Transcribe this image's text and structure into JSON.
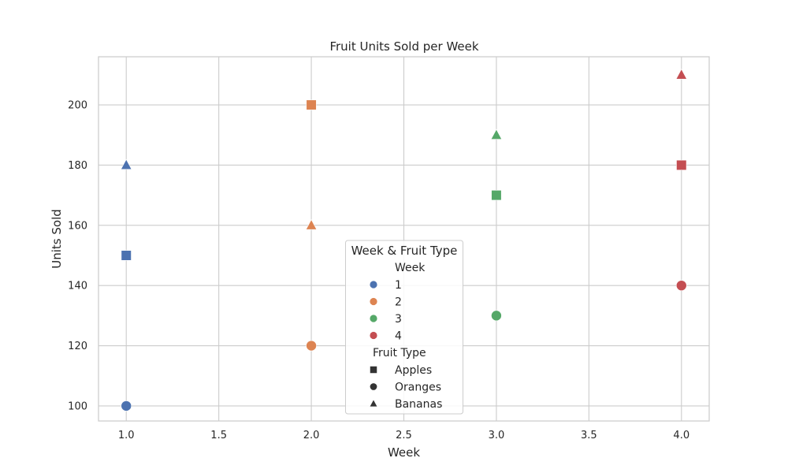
{
  "chart_data": {
    "type": "scatter",
    "title": "Fruit Units Sold per Week",
    "xlabel": "Week",
    "ylabel": "Units Sold",
    "xlim": [
      0.85,
      4.15
    ],
    "ylim": [
      95,
      216
    ],
    "xticks": [
      "1.0",
      "1.5",
      "2.0",
      "2.5",
      "3.0",
      "3.5",
      "4.0"
    ],
    "yticks": [
      "100",
      "120",
      "140",
      "160",
      "180",
      "200"
    ],
    "grid": true,
    "hue_colors": {
      "1": "#4c72b0",
      "2": "#dd8452",
      "3": "#55a868",
      "4": "#c44e52"
    },
    "marker_shapes": {
      "Apples": "square",
      "Oranges": "circle",
      "Bananas": "triangle"
    },
    "points": [
      {
        "x": 1,
        "y": 150,
        "week": "1",
        "fruit": "Apples"
      },
      {
        "x": 1,
        "y": 100,
        "week": "1",
        "fruit": "Oranges"
      },
      {
        "x": 1,
        "y": 180,
        "week": "1",
        "fruit": "Bananas"
      },
      {
        "x": 2,
        "y": 200,
        "week": "2",
        "fruit": "Apples"
      },
      {
        "x": 2,
        "y": 120,
        "week": "2",
        "fruit": "Oranges"
      },
      {
        "x": 2,
        "y": 160,
        "week": "2",
        "fruit": "Bananas"
      },
      {
        "x": 3,
        "y": 170,
        "week": "3",
        "fruit": "Apples"
      },
      {
        "x": 3,
        "y": 130,
        "week": "3",
        "fruit": "Oranges"
      },
      {
        "x": 3,
        "y": 190,
        "week": "3",
        "fruit": "Bananas"
      },
      {
        "x": 4,
        "y": 180,
        "week": "4",
        "fruit": "Apples"
      },
      {
        "x": 4,
        "y": 140,
        "week": "4",
        "fruit": "Oranges"
      },
      {
        "x": 4,
        "y": 210,
        "week": "4",
        "fruit": "Bananas"
      }
    ],
    "legend": {
      "title": "Week & Fruit Type",
      "placement": "lower-center",
      "hue_title": "Week",
      "hue_entries": [
        "1",
        "2",
        "3",
        "4"
      ],
      "style_title": "Fruit Type",
      "style_entries": [
        "Apples",
        "Oranges",
        "Bananas"
      ],
      "style_marker_color": "#333333"
    }
  }
}
